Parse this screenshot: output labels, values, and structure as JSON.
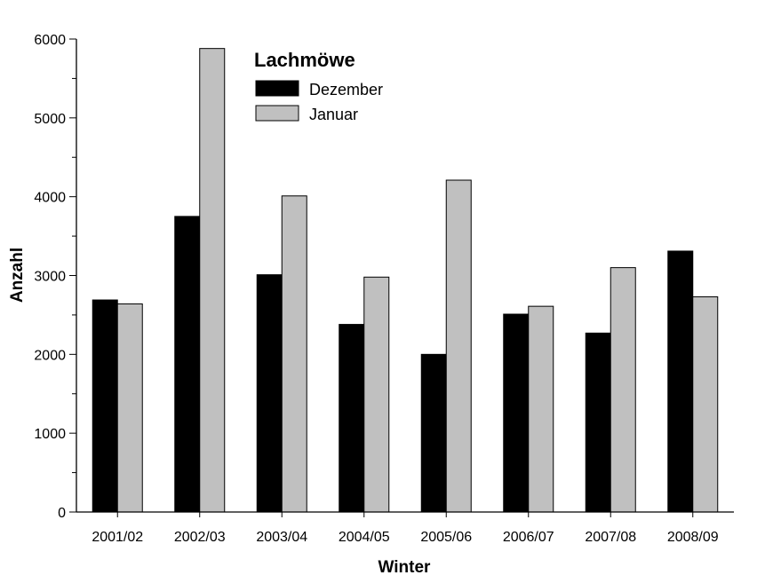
{
  "chart_data": {
    "type": "bar",
    "title": "Lachmöwe",
    "xlabel": "Winter",
    "ylabel": "Anzahl",
    "ylim": [
      0,
      6000
    ],
    "yticks": [
      0,
      1000,
      2000,
      3000,
      4000,
      5000,
      6000
    ],
    "grid": false,
    "legend_position": "top-left",
    "categories": [
      "2001/02",
      "2002/03",
      "2003/04",
      "2004/05",
      "2005/06",
      "2006/07",
      "2007/08",
      "2008/09"
    ],
    "series": [
      {
        "name": "Dezember",
        "color": "#000000",
        "values": [
          2690,
          3750,
          3010,
          2380,
          2000,
          2510,
          2270,
          3310
        ]
      },
      {
        "name": "Januar",
        "color": "#c0c0c0",
        "values": [
          2640,
          5880,
          4010,
          2980,
          4210,
          2610,
          3100,
          2730
        ]
      }
    ]
  }
}
